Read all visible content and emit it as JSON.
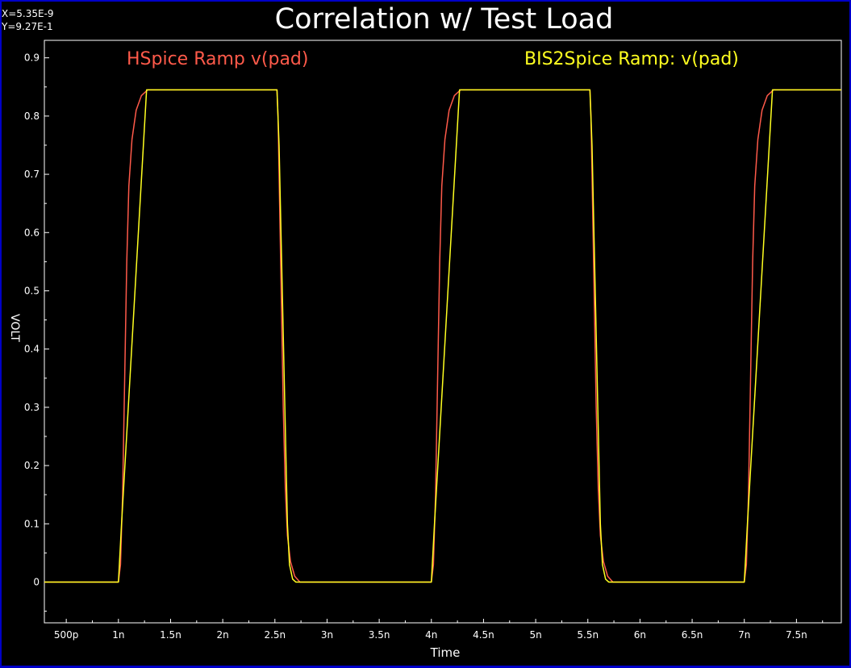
{
  "readout": {
    "x": "X=5.35E-9",
    "y": "Y=9.27E-1"
  },
  "chart_data": {
    "type": "line",
    "title": "Correlation w/ Test Load",
    "xlabel": "Time",
    "ylabel": "VOLT",
    "xlim": [
      2.9e-10,
      7.93e-09
    ],
    "ylim": [
      -0.07,
      0.93
    ],
    "legend_placement": "top",
    "grid": false,
    "x_ticks": [
      {
        "v": 5e-10,
        "label": "500p"
      },
      {
        "v": 1e-09,
        "label": "1n"
      },
      {
        "v": 1.5e-09,
        "label": "1.5n"
      },
      {
        "v": 2e-09,
        "label": "2n"
      },
      {
        "v": 2.5e-09,
        "label": "2.5n"
      },
      {
        "v": 3e-09,
        "label": "3n"
      },
      {
        "v": 3.5e-09,
        "label": "3.5n"
      },
      {
        "v": 4e-09,
        "label": "4n"
      },
      {
        "v": 4.5e-09,
        "label": "4.5n"
      },
      {
        "v": 5e-09,
        "label": "5n"
      },
      {
        "v": 5.5e-09,
        "label": "5.5n"
      },
      {
        "v": 6e-09,
        "label": "6n"
      },
      {
        "v": 6.5e-09,
        "label": "6.5n"
      },
      {
        "v": 7e-09,
        "label": "7n"
      },
      {
        "v": 7.5e-09,
        "label": "7.5n"
      }
    ],
    "y_ticks": [
      {
        "v": 0.0,
        "label": "0"
      },
      {
        "v": 0.1,
        "label": "0.1"
      },
      {
        "v": 0.2,
        "label": "0.2"
      },
      {
        "v": 0.3,
        "label": "0.3"
      },
      {
        "v": 0.4,
        "label": "0.4"
      },
      {
        "v": 0.5,
        "label": "0.5"
      },
      {
        "v": 0.6,
        "label": "0.6"
      },
      {
        "v": 0.7,
        "label": "0.7"
      },
      {
        "v": 0.8,
        "label": "0.8"
      },
      {
        "v": 0.9,
        "label": "0.9"
      }
    ],
    "series": [
      {
        "name": "HSpice Ramp v(pad)",
        "color": "#ff5a4a",
        "points": [
          [
            2.9e-10,
            0
          ],
          [
            1e-09,
            0
          ],
          [
            1.02e-09,
            0.03
          ],
          [
            1.04e-09,
            0.15
          ],
          [
            1.06e-09,
            0.35
          ],
          [
            1.08e-09,
            0.55
          ],
          [
            1.1e-09,
            0.68
          ],
          [
            1.13e-09,
            0.76
          ],
          [
            1.17e-09,
            0.81
          ],
          [
            1.22e-09,
            0.835
          ],
          [
            1.28e-09,
            0.845
          ],
          [
            2.52e-09,
            0.845
          ],
          [
            2.53e-09,
            0.8
          ],
          [
            2.54e-09,
            0.7
          ],
          [
            2.56e-09,
            0.5
          ],
          [
            2.58e-09,
            0.3
          ],
          [
            2.6e-09,
            0.16
          ],
          [
            2.62e-09,
            0.08
          ],
          [
            2.65e-09,
            0.035
          ],
          [
            2.69e-09,
            0.01
          ],
          [
            2.74e-09,
            0
          ],
          [
            4e-09,
            0
          ],
          [
            4.02e-09,
            0.03
          ],
          [
            4.04e-09,
            0.15
          ],
          [
            4.06e-09,
            0.35
          ],
          [
            4.08e-09,
            0.55
          ],
          [
            4.1e-09,
            0.68
          ],
          [
            4.13e-09,
            0.76
          ],
          [
            4.17e-09,
            0.81
          ],
          [
            4.22e-09,
            0.835
          ],
          [
            4.28e-09,
            0.845
          ],
          [
            5.52e-09,
            0.845
          ],
          [
            5.53e-09,
            0.8
          ],
          [
            5.54e-09,
            0.7
          ],
          [
            5.56e-09,
            0.5
          ],
          [
            5.58e-09,
            0.3
          ],
          [
            5.6e-09,
            0.16
          ],
          [
            5.62e-09,
            0.08
          ],
          [
            5.65e-09,
            0.035
          ],
          [
            5.69e-09,
            0.01
          ],
          [
            5.74e-09,
            0
          ],
          [
            7e-09,
            0
          ],
          [
            7.02e-09,
            0.03
          ],
          [
            7.04e-09,
            0.15
          ],
          [
            7.06e-09,
            0.35
          ],
          [
            7.08e-09,
            0.55
          ],
          [
            7.1e-09,
            0.68
          ],
          [
            7.13e-09,
            0.76
          ],
          [
            7.17e-09,
            0.81
          ],
          [
            7.22e-09,
            0.835
          ],
          [
            7.28e-09,
            0.845
          ],
          [
            7.93e-09,
            0.845
          ]
        ]
      },
      {
        "name": "BIS2Spice Ramp: v(pad)",
        "color": "#ffff20",
        "points": [
          [
            2.9e-10,
            0
          ],
          [
            1e-09,
            0
          ],
          [
            1.03e-09,
            0.1
          ],
          [
            1.27e-09,
            0.845
          ],
          [
            2.52e-09,
            0.845
          ],
          [
            2.54e-09,
            0.75
          ],
          [
            2.62e-09,
            0.1
          ],
          [
            2.64e-09,
            0.03
          ],
          [
            2.67e-09,
            0.005
          ],
          [
            2.7e-09,
            0
          ],
          [
            4e-09,
            0
          ],
          [
            4.03e-09,
            0.1
          ],
          [
            4.27e-09,
            0.845
          ],
          [
            5.52e-09,
            0.845
          ],
          [
            5.54e-09,
            0.75
          ],
          [
            5.62e-09,
            0.1
          ],
          [
            5.64e-09,
            0.03
          ],
          [
            5.67e-09,
            0.005
          ],
          [
            5.7e-09,
            0
          ],
          [
            7e-09,
            0
          ],
          [
            7.03e-09,
            0.1
          ],
          [
            7.27e-09,
            0.845
          ],
          [
            7.93e-09,
            0.845
          ]
        ]
      }
    ]
  }
}
